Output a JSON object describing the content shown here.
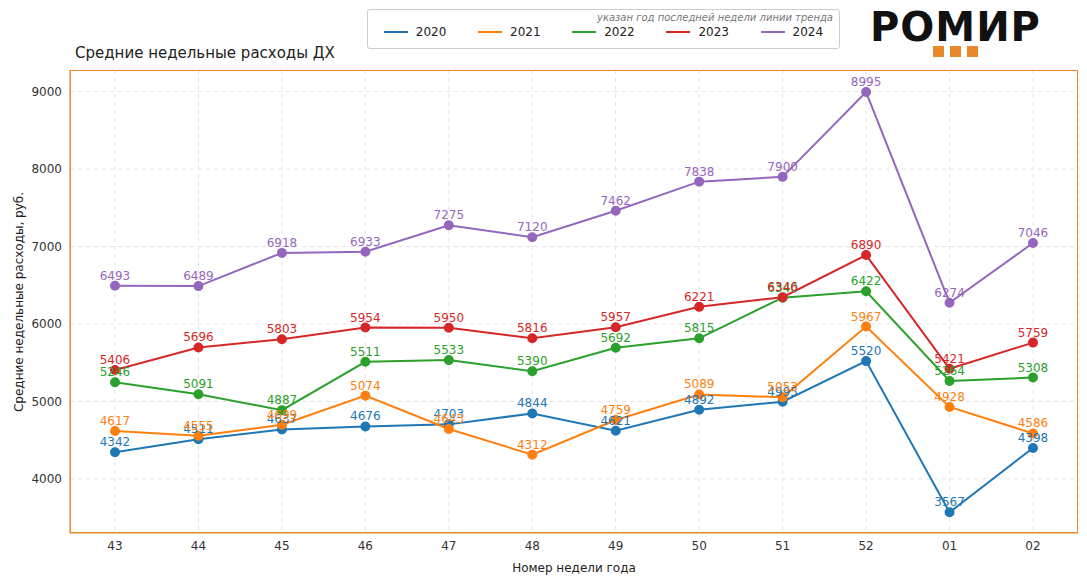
{
  "chart_data": {
    "type": "line",
    "title": "Средние недельные расходы ДХ",
    "subtitle": "указан год последней недели линии тренда",
    "annotations": [
      "РОМИР"
    ],
    "x_label": "Номер недели года",
    "y_label": "Средние недельные расходы, руб.",
    "categories": [
      "43",
      "44",
      "45",
      "46",
      "47",
      "48",
      "49",
      "50",
      "51",
      "52",
      "01",
      "02"
    ],
    "series": [
      {
        "name": "2020",
        "color": "#1f77b4",
        "values": [
          4342,
          4511,
          4637,
          4676,
          4703,
          4844,
          4621,
          4892,
          4995,
          5520,
          3567,
          4398
        ]
      },
      {
        "name": "2021",
        "color": "#ff7f0e",
        "values": [
          4617,
          4555,
          4699,
          5074,
          4643,
          4312,
          4759,
          5089,
          5053,
          5967,
          4928,
          4586
        ]
      },
      {
        "name": "2022",
        "color": "#2ca02c",
        "values": [
          5246,
          5091,
          4887,
          5511,
          5533,
          5390,
          5692,
          5815,
          6340,
          6422,
          5264,
          5308
        ]
      },
      {
        "name": "2023",
        "color": "#d62728",
        "values": [
          5406,
          5696,
          5803,
          5954,
          5950,
          5816,
          5957,
          6221,
          6346,
          6890,
          5421,
          5759
        ]
      },
      {
        "name": "2024",
        "color": "#9467bd",
        "values": [
          6493,
          6489,
          6918,
          6933,
          7275,
          7120,
          7462,
          7838,
          7900,
          8995,
          6274,
          7046
        ]
      }
    ],
    "ylim": [
      3300,
      9280
    ],
    "yticks": [
      4000,
      5000,
      6000,
      7000,
      8000,
      9000
    ],
    "grid": true,
    "legend": "top",
    "data_labels": true,
    "marker": "circle",
    "line_style": "solid"
  }
}
